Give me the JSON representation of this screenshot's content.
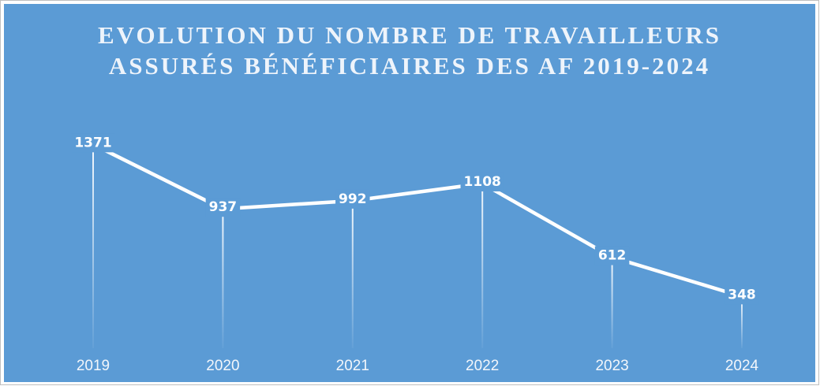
{
  "chart_data": {
    "type": "line",
    "title": [
      "EVOLUTION DU NOMBRE DE TRAVAILLEURS",
      "ASSURÉS BÉNÉFICIAIRES DES AF 2019-2024"
    ],
    "categories": [
      "2019",
      "2020",
      "2021",
      "2022",
      "2023",
      "2024"
    ],
    "values": [
      1371,
      937,
      992,
      1108,
      612,
      348
    ],
    "color": "#ffffff",
    "background": "#5b9bd5",
    "ylim": [
      0,
      1500
    ],
    "grid": false
  }
}
